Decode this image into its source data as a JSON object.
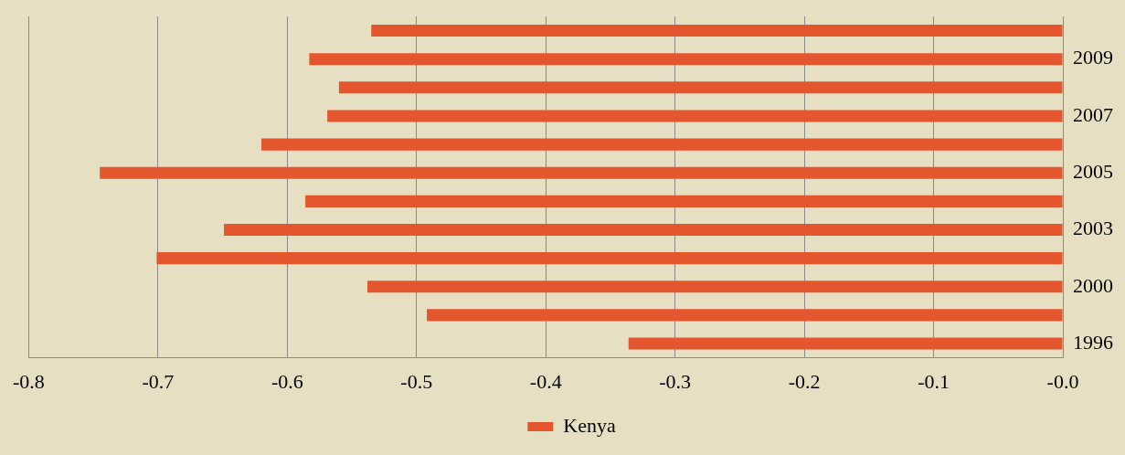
{
  "chart_data": {
    "type": "bar",
    "orientation": "horizontal",
    "categories": [
      null,
      "2009",
      null,
      "2007",
      null,
      "2005",
      null,
      "2003",
      null,
      "2000",
      null,
      "1996"
    ],
    "series": [
      {
        "name": "Kenya",
        "color": "#e4572e",
        "values": [
          -0.535,
          -0.583,
          -0.56,
          -0.569,
          -0.62,
          -0.745,
          -0.586,
          -0.649,
          -0.701,
          -0.538,
          -0.492,
          -0.336
        ]
      }
    ],
    "xlim": [
      -0.8,
      0
    ],
    "xticks": [
      -0.8,
      -0.7,
      -0.6,
      -0.5,
      -0.4,
      -0.3,
      -0.2,
      -0.1,
      {
        "value": 0,
        "label": "-0.0"
      }
    ],
    "grid": "x",
    "legend": "bottom"
  }
}
